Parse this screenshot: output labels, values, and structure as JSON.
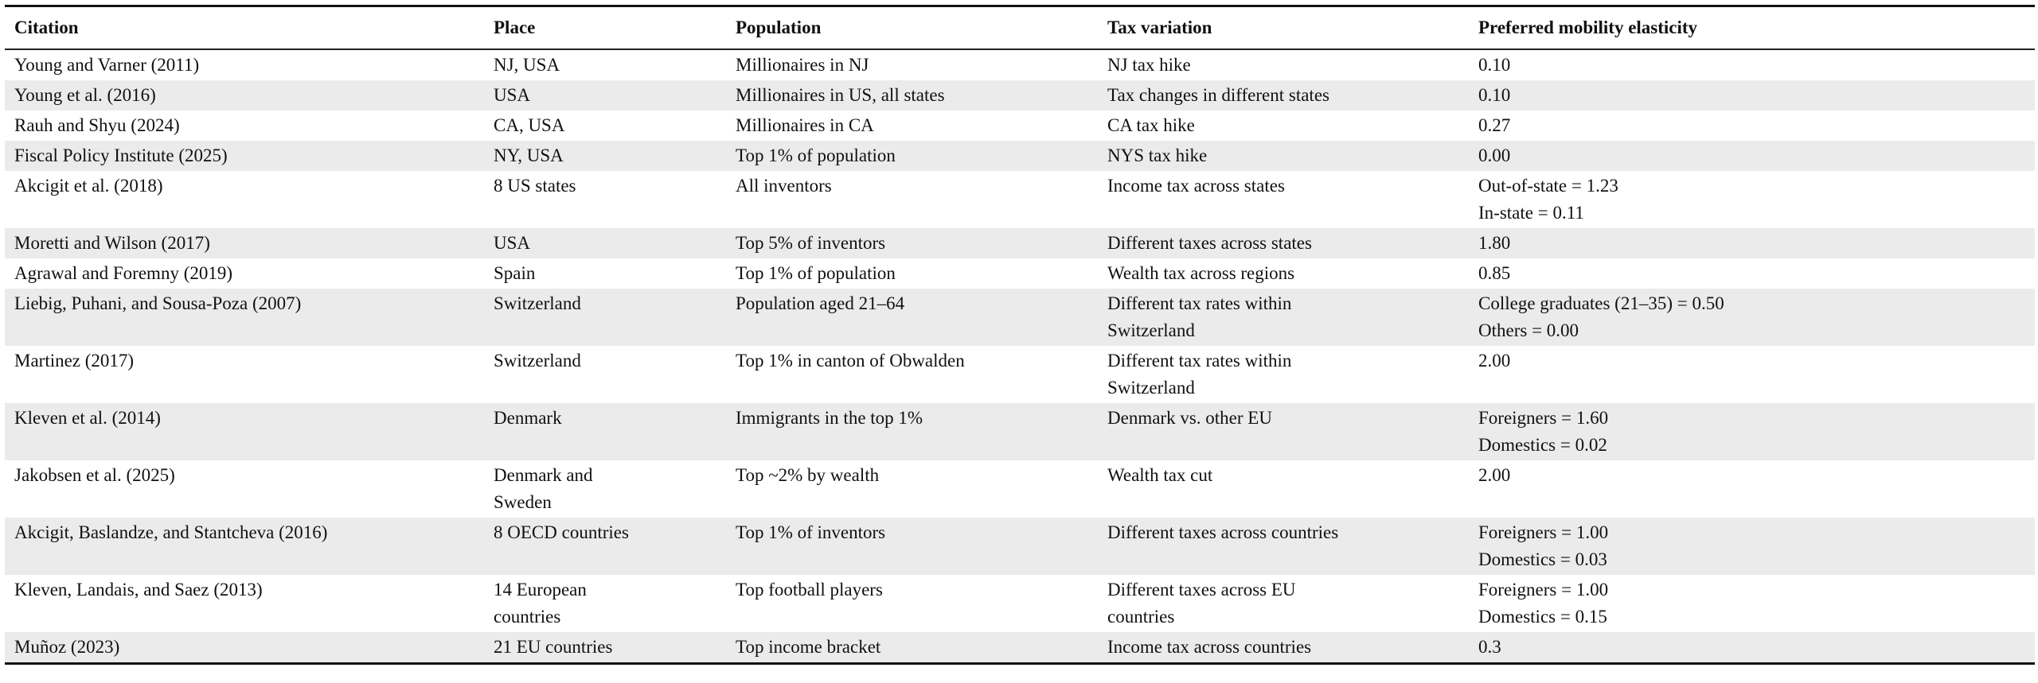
{
  "table": {
    "headers": [
      "Citation",
      "Place",
      "Population",
      "Tax variation",
      "Preferred mobility elasticity"
    ],
    "shade_color": "#ebebeb",
    "rows": [
      {
        "citation": [
          "Young and Varner (2011)"
        ],
        "place": [
          "NJ, USA"
        ],
        "population": [
          "Millionaires in NJ"
        ],
        "tax_variation": [
          "NJ tax hike"
        ],
        "elasticity": [
          "0.10"
        ]
      },
      {
        "citation": [
          "Young et al. (2016)"
        ],
        "place": [
          "USA"
        ],
        "population": [
          "Millionaires in US, all states"
        ],
        "tax_variation": [
          "Tax changes in different states"
        ],
        "elasticity": [
          "0.10"
        ]
      },
      {
        "citation": [
          "Rauh and Shyu (2024)"
        ],
        "place": [
          "CA, USA"
        ],
        "population": [
          "Millionaires in CA"
        ],
        "tax_variation": [
          "CA tax hike"
        ],
        "elasticity": [
          "0.27"
        ]
      },
      {
        "citation": [
          "Fiscal Policy Institute (2025)"
        ],
        "place": [
          "NY, USA"
        ],
        "population": [
          "Top 1% of population"
        ],
        "tax_variation": [
          "NYS tax hike"
        ],
        "elasticity": [
          "0.00"
        ]
      },
      {
        "citation": [
          "Akcigit et al. (2018)"
        ],
        "place": [
          "8 US states"
        ],
        "population": [
          "All inventors"
        ],
        "tax_variation": [
          "Income tax across states"
        ],
        "elasticity": [
          "Out-of-state = 1.23",
          "In-state = 0.11"
        ]
      },
      {
        "citation": [
          "Moretti and Wilson (2017)"
        ],
        "place": [
          "USA"
        ],
        "population": [
          "Top 5% of inventors"
        ],
        "tax_variation": [
          "Different taxes across states"
        ],
        "elasticity": [
          "1.80"
        ]
      },
      {
        "citation": [
          "Agrawal and Foremny (2019)"
        ],
        "place": [
          "Spain"
        ],
        "population": [
          "Top 1% of population"
        ],
        "tax_variation": [
          "Wealth tax across regions"
        ],
        "elasticity": [
          "0.85"
        ]
      },
      {
        "citation": [
          "Liebig, Puhani, and Sousa-Poza (2007)"
        ],
        "place": [
          "Switzerland"
        ],
        "population": [
          "Population aged 21–64"
        ],
        "tax_variation": [
          "Different tax rates within",
          "Switzerland"
        ],
        "elasticity": [
          "College graduates (21–35) = 0.50",
          "Others = 0.00"
        ]
      },
      {
        "citation": [
          "Martinez (2017)"
        ],
        "place": [
          "Switzerland"
        ],
        "population": [
          "Top 1% in canton of Obwalden"
        ],
        "tax_variation": [
          "Different tax rates within",
          "Switzerland"
        ],
        "elasticity": [
          "2.00"
        ]
      },
      {
        "citation": [
          "Kleven et al. (2014)"
        ],
        "place": [
          "Denmark"
        ],
        "population": [
          "Immigrants in the top 1%"
        ],
        "tax_variation": [
          "Denmark vs. other EU"
        ],
        "elasticity": [
          "Foreigners = 1.60",
          "Domestics = 0.02"
        ]
      },
      {
        "citation": [
          "Jakobsen et al. (2025)"
        ],
        "place": [
          "Denmark and",
          "Sweden"
        ],
        "population": [
          "Top ~2% by wealth"
        ],
        "tax_variation": [
          "Wealth tax cut"
        ],
        "elasticity": [
          "2.00"
        ]
      },
      {
        "citation": [
          "Akcigit, Baslandze, and Stantcheva (2016)"
        ],
        "place": [
          "8 OECD countries"
        ],
        "population": [
          "Top 1% of inventors"
        ],
        "tax_variation": [
          "Different taxes across countries"
        ],
        "elasticity": [
          "Foreigners = 1.00",
          "Domestics = 0.03"
        ]
      },
      {
        "citation": [
          "Kleven, Landais, and Saez (2013)"
        ],
        "place": [
          "14 European",
          "countries"
        ],
        "population": [
          "Top football players"
        ],
        "tax_variation": [
          "Different taxes across EU",
          "countries"
        ],
        "elasticity": [
          "Foreigners = 1.00",
          "Domestics = 0.15"
        ]
      },
      {
        "citation": [
          "Muñoz (2023)"
        ],
        "place": [
          "21 EU countries"
        ],
        "population": [
          "Top income bracket"
        ],
        "tax_variation": [
          "Income tax across countries"
        ],
        "elasticity": [
          "0.3"
        ]
      }
    ]
  }
}
